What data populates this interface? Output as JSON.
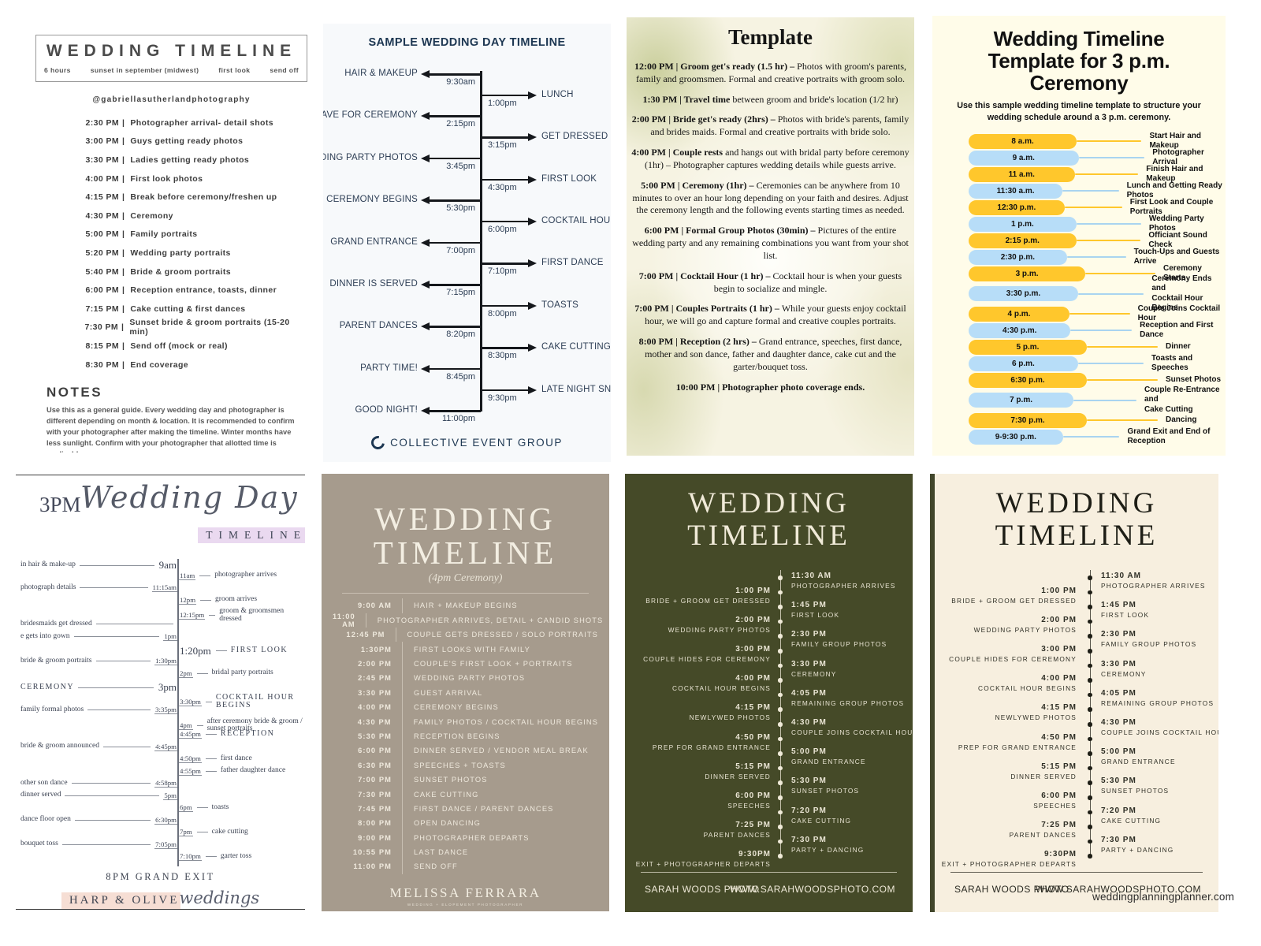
{
  "page": {
    "watermark": "weddingplanningplanner.com"
  },
  "panel1": {
    "title": "WEDDING TIMELINE",
    "meta": [
      "6 hours",
      "sunset in september (midwest)",
      "first look",
      "send off"
    ],
    "handle": "@gabriellasutherlandphotography",
    "separator": "|",
    "items": [
      {
        "time": "2:30 PM",
        "label": "Photographer arrival- detail shots"
      },
      {
        "time": "3:00 PM",
        "label": "Guys getting ready photos"
      },
      {
        "time": "3:30 PM",
        "label": "Ladies getting ready photos"
      },
      {
        "time": "4:00 PM",
        "label": "First look photos"
      },
      {
        "time": "4:15 PM",
        "label": "Break before ceremony/freshen up"
      },
      {
        "time": "4:30 PM",
        "label": "Ceremony"
      },
      {
        "time": "5:00 PM",
        "label": "Family portraits"
      },
      {
        "time": "5:20 PM",
        "label": "Wedding party portraits"
      },
      {
        "time": "5:40 PM",
        "label": "Bride & groom portraits"
      },
      {
        "time": "6:00 PM",
        "label": "Reception entrance, toasts, dinner"
      },
      {
        "time": "7:15 PM",
        "label": "Cake cutting & first dances"
      },
      {
        "time": "7:30 PM",
        "label": "Sunset bride & groom portraits (15-20 min)"
      },
      {
        "time": "8:15 PM",
        "label": "Send off (mock or real)"
      },
      {
        "time": "8:30 PM",
        "label": "End coverage"
      }
    ],
    "notes_title": "NOTES",
    "notes": "Use this as a general guide. Every wedding day and photographer is different depending on month & location. It is recommended to confirm with your photographer after making the timeline. Winter months have less sunlight. Confirm with your photographer that allotted time is applicable."
  },
  "panel2": {
    "title": "SAMPLE WEDDING DAY TIMELINE",
    "events": [
      {
        "side": "left",
        "label": "HAIR & MAKEUP",
        "time": "9:30am"
      },
      {
        "side": "right",
        "label": "LUNCH",
        "time": "1:00pm"
      },
      {
        "side": "left",
        "label": "LEAVE FOR CEREMONY",
        "time": "2:15pm"
      },
      {
        "side": "right",
        "label": "GET DRESSED",
        "time": "3:15pm"
      },
      {
        "side": "left",
        "label": "WEDDING PARTY PHOTOS",
        "time": "3:45pm"
      },
      {
        "side": "right",
        "label": "FIRST LOOK",
        "time": "4:30pm"
      },
      {
        "side": "left",
        "label": "CEREMONY BEGINS",
        "time": "5:30pm"
      },
      {
        "side": "right",
        "label": "COCKTAIL HOUR",
        "time": "6:00pm"
      },
      {
        "side": "left",
        "label": "GRAND ENTRANCE",
        "time": "7:00pm"
      },
      {
        "side": "right",
        "label": "FIRST DANCE",
        "time": "7:10pm"
      },
      {
        "side": "left",
        "label": "DINNER IS SERVED",
        "time": "7:15pm"
      },
      {
        "side": "right",
        "label": "TOASTS",
        "time": "8:00pm"
      },
      {
        "side": "left",
        "label": "PARENT DANCES",
        "time": "8:20pm"
      },
      {
        "side": "right",
        "label": "CAKE CUTTING",
        "time": "8:30pm"
      },
      {
        "side": "left",
        "label": "PARTY TIME!",
        "time": "8:45pm"
      },
      {
        "side": "right",
        "label": "LATE NIGHT SNACK",
        "time": "9:30pm"
      },
      {
        "side": "left",
        "label": "GOOD NIGHT!",
        "time": "11:00pm"
      }
    ],
    "footer": "COLLECTIVE EVENT GROUP"
  },
  "panel3": {
    "title": "Template",
    "entries": [
      {
        "lead": "12:00 PM | Groom get's ready (1.5 hr) – ",
        "body": "Photos with groom's parents, family and groomsmen. Formal and creative portraits with groom solo."
      },
      {
        "lead": "1:30 PM | Travel time ",
        "body": "between groom and bride's location (1/2 hr)"
      },
      {
        "lead": "2:00 PM | Bride get's ready (2hrs) – ",
        "body": "Photos with bride's parents, family and brides maids. Formal and creative portraits with bride solo."
      },
      {
        "lead": "4:00 PM | Couple rests ",
        "body": "and hangs out with bridal party before ceremony (1hr) – Photographer captures wedding details while guests arrive."
      },
      {
        "lead": "5:00 PM | Ceremony (1hr) – ",
        "body": "Ceremonies can be anywhere from 10 minutes to over an hour long depending on your faith and desires. Adjust the ceremony length and the following events starting times as needed."
      },
      {
        "lead": "6:00 PM | Formal Group Photos (30min) – ",
        "body": "Pictures of the entire wedding party and any remaining combinations you want from your shot list."
      },
      {
        "lead": "7:00 PM | Cocktail Hour (1 hr) – ",
        "body": "Cocktail hour is when your guests begin to socialize and mingle."
      },
      {
        "lead": "7:00 PM | Couples Portraits (1 hr) – ",
        "body": "While your guests enjoy cocktail hour, we will go and capture formal and creative couples portraits."
      },
      {
        "lead": "8:00 PM | Reception (2 hrs) – ",
        "body": "Grand entrance, speeches, first dance, mother and son dance, father and daughter dance, cake cut and the garter/bouquet toss."
      },
      {
        "lead": "10:00 PM | Photographer photo coverage ends.",
        "body": ""
      }
    ]
  },
  "panel4": {
    "title": "Wedding Timeline Template for 3 p.m. Ceremony",
    "subtitle": "Use this sample wedding timeline template to structure your wedding schedule around a 3 p.m. ceremony.",
    "colors": {
      "yellow": "#FFC72C",
      "blue": "#B7DDF8",
      "yellow_line": "#FFC72C",
      "blue_line": "#A9D4F0"
    },
    "rows": [
      {
        "time": "8 a.m.",
        "lines": [
          "Start Hair and Makeup"
        ],
        "color": "yellow"
      },
      {
        "time": "9 a.m.",
        "lines": [
          "Photographer Arrival"
        ],
        "color": "blue"
      },
      {
        "time": "11 a.m.",
        "lines": [
          "Finish Hair and Makeup"
        ],
        "color": "yellow"
      },
      {
        "time": "11:30 a.m.",
        "lines": [
          "Lunch and Getting Ready Photos"
        ],
        "color": "blue"
      },
      {
        "time": "12:30 p.m.",
        "lines": [
          "First Look and Couple Portraits"
        ],
        "color": "yellow"
      },
      {
        "time": "1 p.m.",
        "lines": [
          "Wedding Party Photos"
        ],
        "color": "blue"
      },
      {
        "time": "2:15 p.m.",
        "lines": [
          "Officiant Sound Check"
        ],
        "color": "yellow"
      },
      {
        "time": "2:30 p.m.",
        "lines": [
          "Touch-Ups and Guests Arrive"
        ],
        "color": "blue"
      },
      {
        "time": "3 p.m.",
        "lines": [
          "Ceremony Starts"
        ],
        "color": "yellow"
      },
      {
        "time": "3:30 p.m.",
        "lines": [
          "Ceremony Ends and",
          "Cocktail Hour Begins"
        ],
        "color": "blue"
      },
      {
        "time": "4 p.m.",
        "lines": [
          "Couple Joins Cocktail Hour"
        ],
        "color": "yellow"
      },
      {
        "time": "4:30 p.m.",
        "lines": [
          "Reception and First Dance"
        ],
        "color": "blue"
      },
      {
        "time": "5 p.m.",
        "lines": [
          "Dinner"
        ],
        "color": "yellow"
      },
      {
        "time": "6 p.m.",
        "lines": [
          "Toasts and Speeches"
        ],
        "color": "blue"
      },
      {
        "time": "6:30 p.m.",
        "lines": [
          "Sunset Photos"
        ],
        "color": "yellow"
      },
      {
        "time": "7 p.m.",
        "lines": [
          "Couple Re-Entrance and",
          "Cake Cutting"
        ],
        "color": "blue"
      },
      {
        "time": "7:30 p.m.",
        "lines": [
          "Dancing"
        ],
        "color": "yellow"
      },
      {
        "time": "9-9:30 p.m.",
        "lines": [
          "Grand Exit and End of Reception"
        ],
        "color": "blue"
      }
    ]
  },
  "panel5": {
    "title_prefix": "3PM",
    "title_script": "Wedding Day",
    "title_caps": "TIMELINE",
    "events": [
      {
        "side": "left",
        "label": "in hair & make-up",
        "time": "9am",
        "big": true
      },
      {
        "side": "right",
        "label": "photographer arrives",
        "time": "11am"
      },
      {
        "side": "left",
        "label": "photograph details",
        "time": "11:15am"
      },
      {
        "side": "right",
        "label": "groom arrives",
        "time": "12pm"
      },
      {
        "side": "right",
        "label": "groom & groomsmen dressed",
        "time": "12:15pm"
      },
      {
        "side": "left",
        "label": "bridesmaids get dressed",
        "time": ""
      },
      {
        "side": "left",
        "label": "e gets into gown",
        "time": "1pm"
      },
      {
        "side": "right",
        "label": "FIRST LOOK",
        "time": "1:20pm",
        "caps": true,
        "big": true
      },
      {
        "side": "left",
        "label": "bride & groom portraits",
        "time": "1:30pm"
      },
      {
        "side": "right",
        "label": "bridal party portraits",
        "time": "2pm"
      },
      {
        "side": "left",
        "label": "CEREMONY",
        "time": "3pm",
        "caps": true,
        "big": true
      },
      {
        "side": "right",
        "label": "COCKTAIL HOUR BEGINS",
        "time": "3:30pm",
        "caps": true
      },
      {
        "side": "left",
        "label": "family formal photos",
        "time": "3:35pm"
      },
      {
        "side": "right",
        "label": "after ceremony bride & groom / sunset portraits",
        "time": "4pm"
      },
      {
        "side": "right",
        "label": "RECEPTION",
        "time": "4:45pm",
        "caps": true
      },
      {
        "side": "left",
        "label": "bride & groom announced",
        "time": "4:45pm"
      },
      {
        "side": "right",
        "label": "first dance",
        "time": "4:50pm"
      },
      {
        "side": "right",
        "label": "father daughter dance",
        "time": "4:55pm"
      },
      {
        "side": "left",
        "label": "other son dance",
        "time": "4:58pm"
      },
      {
        "side": "left",
        "label": "dinner served",
        "time": "5pm"
      },
      {
        "side": "right",
        "label": "toasts",
        "time": "6pm"
      },
      {
        "side": "left",
        "label": "dance floor open",
        "time": "6:30pm"
      },
      {
        "side": "right",
        "label": "cake cutting",
        "time": "7pm"
      },
      {
        "side": "left",
        "label": "bouquet toss",
        "time": "7:05pm"
      },
      {
        "side": "right",
        "label": "garter toss",
        "time": "7:10pm"
      }
    ],
    "footer_exit": "8PM GRAND EXIT",
    "brand": "HARP & OLIVE",
    "brand_script": "weddings"
  },
  "panel6": {
    "title_line1": "WEDDING",
    "title_line2": "TIMELINE",
    "subtitle": "(4pm Ceremony)",
    "rows": [
      {
        "time": "9:00 AM",
        "label": "HAIR + MAKEUP BEGINS"
      },
      {
        "time": "11:00 AM",
        "label": "PHOTOGRAPHER ARRIVES, DETAIL + CANDID SHOTS"
      },
      {
        "time": "12:45 PM",
        "label": "COUPLE GETS DRESSED / SOLO PORTRAITS"
      },
      {
        "time": "1:30PM",
        "label": "FIRST LOOKS WITH FAMILY"
      },
      {
        "time": "2:00 PM",
        "label": "COUPLE'S FIRST LOOK + PORTRAITS"
      },
      {
        "time": "2:45 PM",
        "label": "WEDDING PARTY PHOTOS"
      },
      {
        "time": "3:30 PM",
        "label": "GUEST ARRIVAL"
      },
      {
        "time": "4:00 PM",
        "label": "CEREMONY BEGINS"
      },
      {
        "time": "4:30 PM",
        "label": "FAMILY PHOTOS / COCKTAIL HOUR BEGINS"
      },
      {
        "time": "5:30 PM",
        "label": "RECEPTION BEGINS"
      },
      {
        "time": "6:00 PM",
        "label": "DINNER SERVED / VENDOR MEAL BREAK"
      },
      {
        "time": "6:30 PM",
        "label": "SPEECHES + TOASTS"
      },
      {
        "time": "7:00 PM",
        "label": "SUNSET PHOTOS"
      },
      {
        "time": "7:30 PM",
        "label": "CAKE CUTTING"
      },
      {
        "time": "7:45 PM",
        "label": "FIRST DANCE / PARENT DANCES"
      },
      {
        "time": "8:00 PM",
        "label": "OPEN DANCING"
      },
      {
        "time": "9:00 PM",
        "label": "PHOTOGRAPHER DEPARTS"
      },
      {
        "time": "10:55 PM",
        "label": "LAST DANCE"
      },
      {
        "time": "11:00 PM",
        "label": "SEND OFF"
      }
    ],
    "brand": "MELISSA FERRARA",
    "brand_sub": "WEDDING + ELOPEMENT PHOTOGRAPHER"
  },
  "panel7": {
    "title_line1": "WEDDING",
    "title_line2": "TIMELINE",
    "events": [
      {
        "side": "right",
        "time": "11:30 AM",
        "label": "PHOTOGRAPHER ARRIVES"
      },
      {
        "side": "left",
        "time": "1:00 PM",
        "label": "BRIDE + GROOM GET DRESSED"
      },
      {
        "side": "right",
        "time": "1:45 PM",
        "label": "FIRST LOOK"
      },
      {
        "side": "left",
        "time": "2:00 PM",
        "label": "WEDDING PARTY PHOTOS"
      },
      {
        "side": "right",
        "time": "2:30 PM",
        "label": "FAMILY GROUP PHOTOS"
      },
      {
        "side": "left",
        "time": "3:00 PM",
        "label": "COUPLE HIDES FOR CEREMONY"
      },
      {
        "side": "right",
        "time": "3:30 PM",
        "label": "CEREMONY"
      },
      {
        "side": "left",
        "time": "4:00 PM",
        "label": "COCKTAIL HOUR BEGINS"
      },
      {
        "side": "right",
        "time": "4:05 PM",
        "label": "REMAINING GROUP PHOTOS"
      },
      {
        "side": "left",
        "time": "4:15 PM",
        "label": "NEWLYWED PHOTOS"
      },
      {
        "side": "right",
        "time": "4:30 PM",
        "label": "COUPLE JOINS COCKTAIL HOUR"
      },
      {
        "side": "left",
        "time": "4:50 PM",
        "label": "PREP FOR GRAND ENTRANCE"
      },
      {
        "side": "right",
        "time": "5:00 PM",
        "label": "GRAND ENTRANCE"
      },
      {
        "side": "left",
        "time": "5:15 PM",
        "label": "DINNER SERVED"
      },
      {
        "side": "right",
        "time": "5:30 PM",
        "label": "SUNSET PHOTOS"
      },
      {
        "side": "left",
        "time": "6:00 PM",
        "label": "SPEECHES"
      },
      {
        "side": "right",
        "time": "7:20 PM",
        "label": "CAKE CUTTING"
      },
      {
        "side": "left",
        "time": "7:25 PM",
        "label": "PARENT DANCES"
      },
      {
        "side": "right",
        "time": "7:30 PM",
        "label": "PARTY + DANCING"
      },
      {
        "side": "left",
        "time": "9:30PM",
        "label": "EXIT + PHOTOGRAPHER DEPARTS"
      }
    ],
    "footer_left": "SARAH WOODS PHOTO",
    "footer_right": "WWW.SARAHWOODSPHOTO.COM"
  },
  "panel8": {
    "title_line1": "WEDDING",
    "title_line2": "TIMELINE",
    "events": [
      {
        "side": "right",
        "time": "11:30 AM",
        "label": "PHOTOGRAPHER ARRIVES"
      },
      {
        "side": "left",
        "time": "1:00 PM",
        "label": "BRIDE + GROOM GET DRESSED"
      },
      {
        "side": "right",
        "time": "1:45 PM",
        "label": "FIRST LOOK"
      },
      {
        "side": "left",
        "time": "2:00 PM",
        "label": "WEDDING PARTY PHOTOS"
      },
      {
        "side": "right",
        "time": "2:30 PM",
        "label": "FAMILY GROUP PHOTOS"
      },
      {
        "side": "left",
        "time": "3:00 PM",
        "label": "COUPLE HIDES FOR CEREMONY"
      },
      {
        "side": "right",
        "time": "3:30 PM",
        "label": "CEREMONY"
      },
      {
        "side": "left",
        "time": "4:00 PM",
        "label": "COCKTAIL HOUR BEGINS"
      },
      {
        "side": "right",
        "time": "4:05 PM",
        "label": "REMAINING GROUP PHOTOS"
      },
      {
        "side": "left",
        "time": "4:15 PM",
        "label": "NEWLYWED PHOTOS"
      },
      {
        "side": "right",
        "time": "4:30 PM",
        "label": "COUPLE JOINS COCKTAIL HOUR"
      },
      {
        "side": "left",
        "time": "4:50 PM",
        "label": "PREP FOR GRAND ENTRANCE"
      },
      {
        "side": "right",
        "time": "5:00 PM",
        "label": "GRAND ENTRANCE"
      },
      {
        "side": "left",
        "time": "5:15 PM",
        "label": "DINNER SERVED"
      },
      {
        "side": "right",
        "time": "5:30 PM",
        "label": "SUNSET PHOTOS"
      },
      {
        "side": "left",
        "time": "6:00 PM",
        "label": "SPEECHES"
      },
      {
        "side": "right",
        "time": "7:20 PM",
        "label": "CAKE CUTTING"
      },
      {
        "side": "left",
        "time": "7:25 PM",
        "label": "PARENT DANCES"
      },
      {
        "side": "right",
        "time": "7:30 PM",
        "label": "PARTY + DANCING"
      },
      {
        "side": "left",
        "time": "9:30PM",
        "label": "EXIT + PHOTOGRAPHER DEPARTS"
      }
    ],
    "footer_left": "SARAH WOODS PHOTO",
    "footer_right": "WWW.SARAHWOODSPHOTO.COM"
  }
}
